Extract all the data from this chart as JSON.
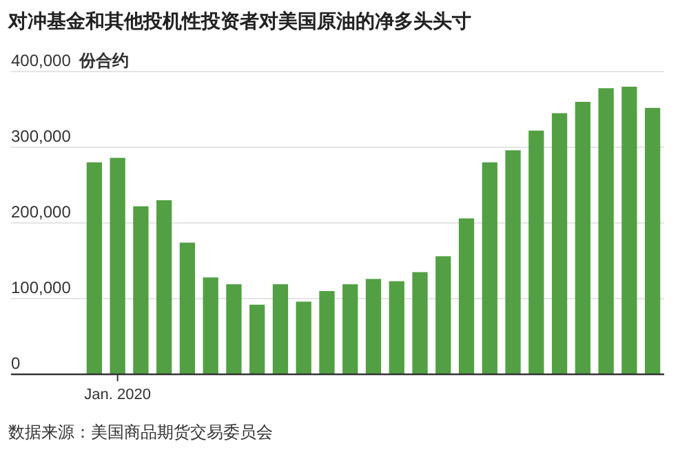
{
  "chart_data": {
    "type": "bar",
    "title": "对冲基金和其他投机性投资者对美国原油的净多头头寸",
    "ylabel": "份合约",
    "categories": [
      null,
      "Jan. 2020",
      null,
      null,
      null,
      null,
      null,
      null,
      null,
      null,
      null,
      null,
      null,
      null,
      null,
      null,
      null,
      null,
      null,
      null,
      null,
      null,
      null,
      null,
      null
    ],
    "values": [
      280000,
      286000,
      222000,
      230000,
      174000,
      128000,
      119000,
      92000,
      119000,
      96000,
      110000,
      119000,
      126000,
      123000,
      135000,
      156000,
      206000,
      280000,
      296000,
      322000,
      345000,
      360000,
      378000,
      380000,
      352000
    ],
    "color": "#52a043",
    "ylim": [
      0,
      400000
    ],
    "yticks": [
      {
        "value": 0,
        "label": "0"
      },
      {
        "value": 100000,
        "label": "100,000"
      },
      {
        "value": 200000,
        "label": "200,000"
      },
      {
        "value": 300000,
        "label": "300,000"
      },
      {
        "value": 400000,
        "label": "400,000"
      }
    ],
    "grid": "y",
    "annotations": [
      "数据来源：美国商品期货交易委员会"
    ]
  }
}
